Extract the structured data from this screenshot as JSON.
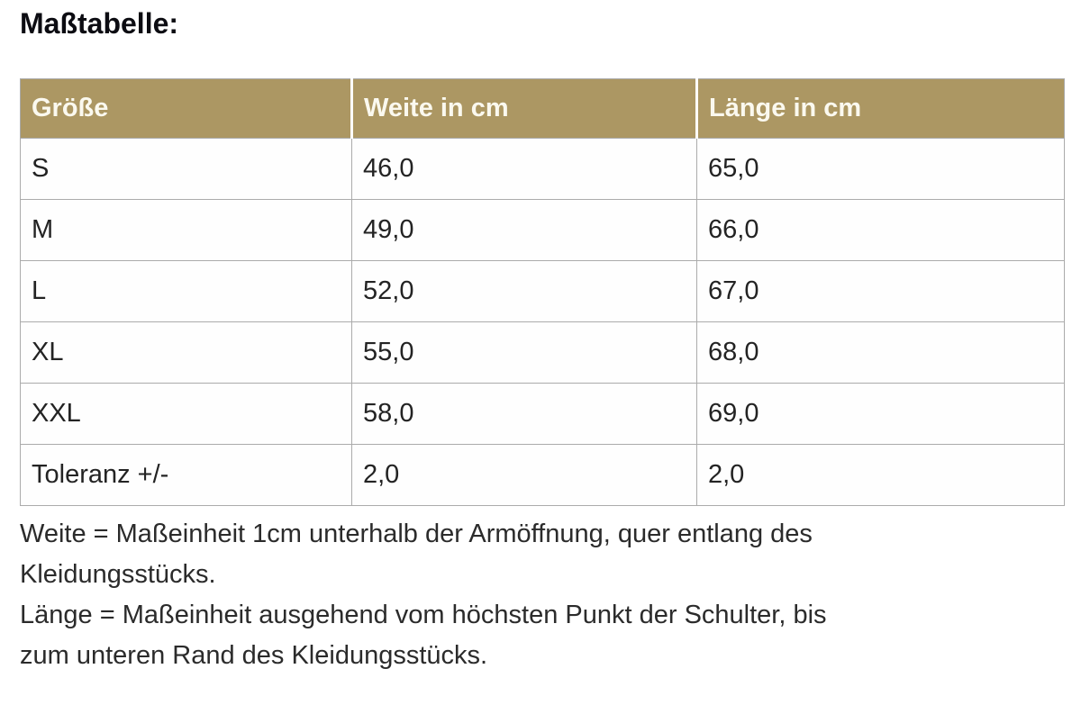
{
  "page_title": "Maßtabelle:",
  "table": {
    "columns": [
      "Größe",
      "Weite in cm",
      "Länge in cm"
    ],
    "rows": [
      [
        "S",
        "46,0",
        "65,0"
      ],
      [
        "M",
        "49,0",
        "66,0"
      ],
      [
        "L",
        "52,0",
        "67,0"
      ],
      [
        "XL",
        "55,0",
        "68,0"
      ],
      [
        "XXL",
        "58,0",
        "69,0"
      ],
      [
        "Toleranz +/-",
        "2,0",
        "2,0"
      ]
    ]
  },
  "notes": {
    "lines": [
      "Weite = Maßeinheit 1cm unterhalb der Armöffnung, quer entlang des",
      "Kleidungsstücks.",
      "Länge = Maßeinheit ausgehend vom höchsten Punkt der Schulter, bis",
      "zum unteren Rand des Kleidungsstücks."
    ]
  },
  "colors": {
    "header_bg": "#ac9763",
    "header_text": "#fbf9ef",
    "body_text": "#232323",
    "border": "#ababab"
  }
}
